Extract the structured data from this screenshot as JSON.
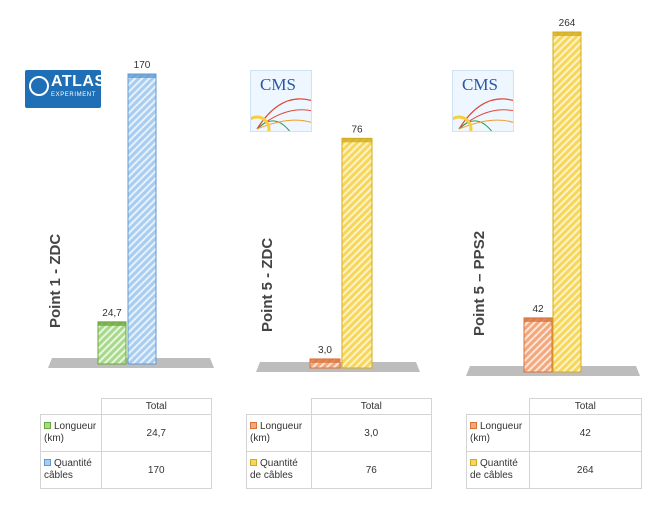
{
  "chart_data": [
    {
      "type": "bar",
      "panel_label": "Point  1 - ZDC",
      "logo": "ATLAS EXPERIMENT logo",
      "categories": [
        "Total"
      ],
      "series": [
        {
          "name": "Longueur (km)",
          "values": [
            24.7
          ],
          "label": "24,7",
          "color": "#7fbf4a"
        },
        {
          "name": "Quantité câbles",
          "values": [
            170
          ],
          "label": "170",
          "color": "#8fbce6"
        }
      ],
      "table": {
        "header": "Total",
        "rows": [
          {
            "label": "Longueur (km)",
            "value": "24,7"
          },
          {
            "label": "Quantité câbles",
            "value": "170"
          }
        ]
      }
    },
    {
      "type": "bar",
      "panel_label": "Point 5 - ZDC",
      "logo": "CMS logo",
      "categories": [
        "Total"
      ],
      "series": [
        {
          "name": "Longueur (km)",
          "values": [
            3.0
          ],
          "label": "3,0",
          "color": "#ed8a50"
        },
        {
          "name": "Quantité de câbles",
          "values": [
            76
          ],
          "label": "76",
          "color": "#f5cf3c"
        }
      ],
      "table": {
        "header": "Total",
        "rows": [
          {
            "label": "Longueur (km)",
            "value": "3,0"
          },
          {
            "label": "Quantité de câbles",
            "value": "76"
          }
        ]
      }
    },
    {
      "type": "bar",
      "panel_label": "Point 5 – PPS2",
      "logo": "CMS logo",
      "categories": [
        "Total"
      ],
      "series": [
        {
          "name": "Longueur (km)",
          "values": [
            42
          ],
          "label": "42",
          "color": "#ed8a50"
        },
        {
          "name": "Quantité de câbles",
          "values": [
            264
          ],
          "label": "264",
          "color": "#f5cf3c"
        }
      ],
      "table": {
        "header": "Total",
        "rows": [
          {
            "label": "Longueur (km)",
            "value": "42"
          },
          {
            "label": "Quantité de câbles",
            "value": "264"
          }
        ]
      }
    }
  ],
  "logos": {
    "atlas": {
      "word": "ATLAS",
      "sub": "EXPERIMENT"
    },
    "cms": {
      "word": "CMS"
    }
  }
}
